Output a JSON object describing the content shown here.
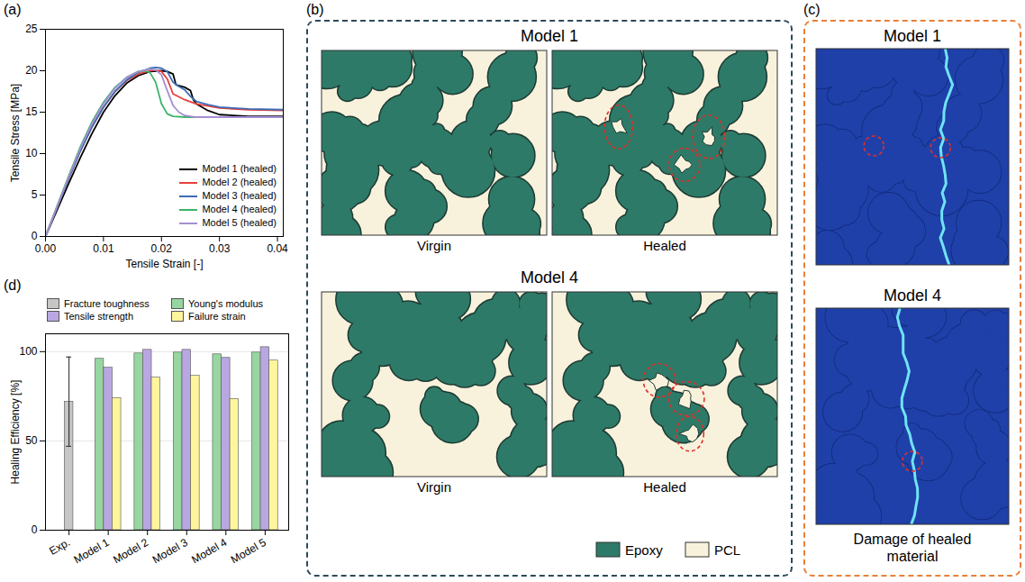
{
  "chart_data": [
    {
      "panel": "(a)",
      "type": "line",
      "x_label": "Tensile Strain [-]",
      "y_label": "Tensile Stress [MPa]",
      "xlim": [
        0,
        0.041
      ],
      "xticks": [
        {
          "value": 0,
          "label": "0.00"
        },
        0.01,
        0.02,
        0.03,
        0.04
      ],
      "ylim": [
        0,
        25
      ],
      "yticks": [
        0,
        5,
        10,
        15,
        20,
        25
      ],
      "legend": "bottom-right",
      "series": [
        {
          "name": "Model 1 (healed)",
          "color": "#000000",
          "x": [
            0,
            0.002,
            0.004,
            0.006,
            0.008,
            0.01,
            0.012,
            0.014,
            0.016,
            0.018,
            0.02,
            0.021,
            0.022,
            0.0225,
            0.024,
            0.025,
            0.0255,
            0.026,
            0.028,
            0.03,
            0.035,
            0.041
          ],
          "values": [
            0,
            3.2,
            6.4,
            9.5,
            12.4,
            15.0,
            17.0,
            18.5,
            19.4,
            19.9,
            20.0,
            19.9,
            19.6,
            18.3,
            18.0,
            17.6,
            16.5,
            16.0,
            15.2,
            14.7,
            14.5,
            14.5
          ]
        },
        {
          "name": "Model 2 (healed)",
          "color": "#e8403a",
          "x": [
            0,
            0.002,
            0.004,
            0.006,
            0.008,
            0.01,
            0.012,
            0.014,
            0.016,
            0.018,
            0.019,
            0.02,
            0.021,
            0.022,
            0.024,
            0.026,
            0.03,
            0.035,
            0.041
          ],
          "values": [
            0,
            3.5,
            7.0,
            10.3,
            13.2,
            15.6,
            17.5,
            18.8,
            19.6,
            20.0,
            20.1,
            19.9,
            19.0,
            17.2,
            16.5,
            16.0,
            15.5,
            15.3,
            15.2
          ]
        },
        {
          "name": "Model 3 (healed)",
          "color": "#3d6cb5",
          "x": [
            0,
            0.002,
            0.004,
            0.006,
            0.008,
            0.01,
            0.012,
            0.014,
            0.016,
            0.018,
            0.019,
            0.02,
            0.021,
            0.022,
            0.023,
            0.024,
            0.025,
            0.026,
            0.028,
            0.03,
            0.035,
            0.041
          ],
          "values": [
            0,
            3.5,
            7.0,
            10.3,
            13.2,
            15.6,
            17.5,
            18.9,
            19.8,
            20.3,
            20.4,
            20.3,
            19.9,
            18.6,
            18.1,
            17.7,
            16.9,
            16.3,
            15.9,
            15.6,
            15.4,
            15.3
          ]
        },
        {
          "name": "Model 4 (healed)",
          "color": "#3cb36a",
          "x": [
            0,
            0.002,
            0.004,
            0.006,
            0.008,
            0.01,
            0.012,
            0.014,
            0.016,
            0.017,
            0.018,
            0.019,
            0.02,
            0.021,
            0.022,
            0.024,
            0.03,
            0.041
          ],
          "values": [
            0,
            3.7,
            7.3,
            10.8,
            13.8,
            16.2,
            18.0,
            19.2,
            19.9,
            20.0,
            19.8,
            18.6,
            16.0,
            14.8,
            14.5,
            14.4,
            14.4,
            14.4
          ]
        },
        {
          "name": "Model 5 (healed)",
          "color": "#a58fd2",
          "x": [
            0,
            0.002,
            0.004,
            0.006,
            0.008,
            0.01,
            0.012,
            0.014,
            0.016,
            0.018,
            0.019,
            0.02,
            0.021,
            0.022,
            0.023,
            0.024,
            0.026,
            0.03,
            0.041
          ],
          "values": [
            0,
            3.6,
            7.2,
            10.6,
            13.6,
            16.0,
            17.9,
            19.2,
            19.9,
            20.2,
            20.1,
            19.5,
            17.6,
            15.8,
            15.0,
            14.6,
            14.4,
            14.4,
            14.4
          ]
        }
      ]
    },
    {
      "panel": "(d)",
      "type": "bar",
      "y_label": "Healing Efficiency [%]",
      "categories": [
        "Exp.",
        "Model 1",
        "Model 2",
        "Model 3",
        "Model 4",
        "Model 5"
      ],
      "ylim": [
        0,
        110
      ],
      "yticks": [
        0,
        50,
        100
      ],
      "grid": true,
      "legend": "top",
      "series": [
        {
          "name": "Fracture toughness",
          "color": "#c6c6c6",
          "values": [
            72,
            null,
            null,
            null,
            null,
            null
          ],
          "error": [
            25,
            null,
            null,
            null,
            null,
            null
          ]
        },
        {
          "name": "Young's modulus",
          "color": "#97d6a0",
          "values": [
            null,
            96,
            99,
            99.5,
            98.5,
            99.5
          ]
        },
        {
          "name": "Tensile strength",
          "color": "#b9a7e2",
          "values": [
            null,
            91,
            101,
            101,
            96.5,
            102.5
          ]
        },
        {
          "name": "Failure strain",
          "color": "#fff59c",
          "values": [
            null,
            74,
            85.5,
            86.5,
            73.5,
            95
          ]
        }
      ]
    }
  ],
  "diagrams": [
    {
      "panel": "(b)",
      "type": "diagram",
      "models": [
        "Model 1",
        "Model 4"
      ],
      "image_labels": [
        "Virgin",
        "Healed"
      ],
      "materials": [
        {
          "name": "Epoxy",
          "color": "#2e7a68"
        },
        {
          "name": "PCL",
          "color": "#f8f2dc"
        }
      ]
    },
    {
      "panel": "(c)",
      "type": "diagram",
      "models": [
        "Model 1",
        "Model 4"
      ],
      "caption": "Damage of healed material"
    }
  ]
}
